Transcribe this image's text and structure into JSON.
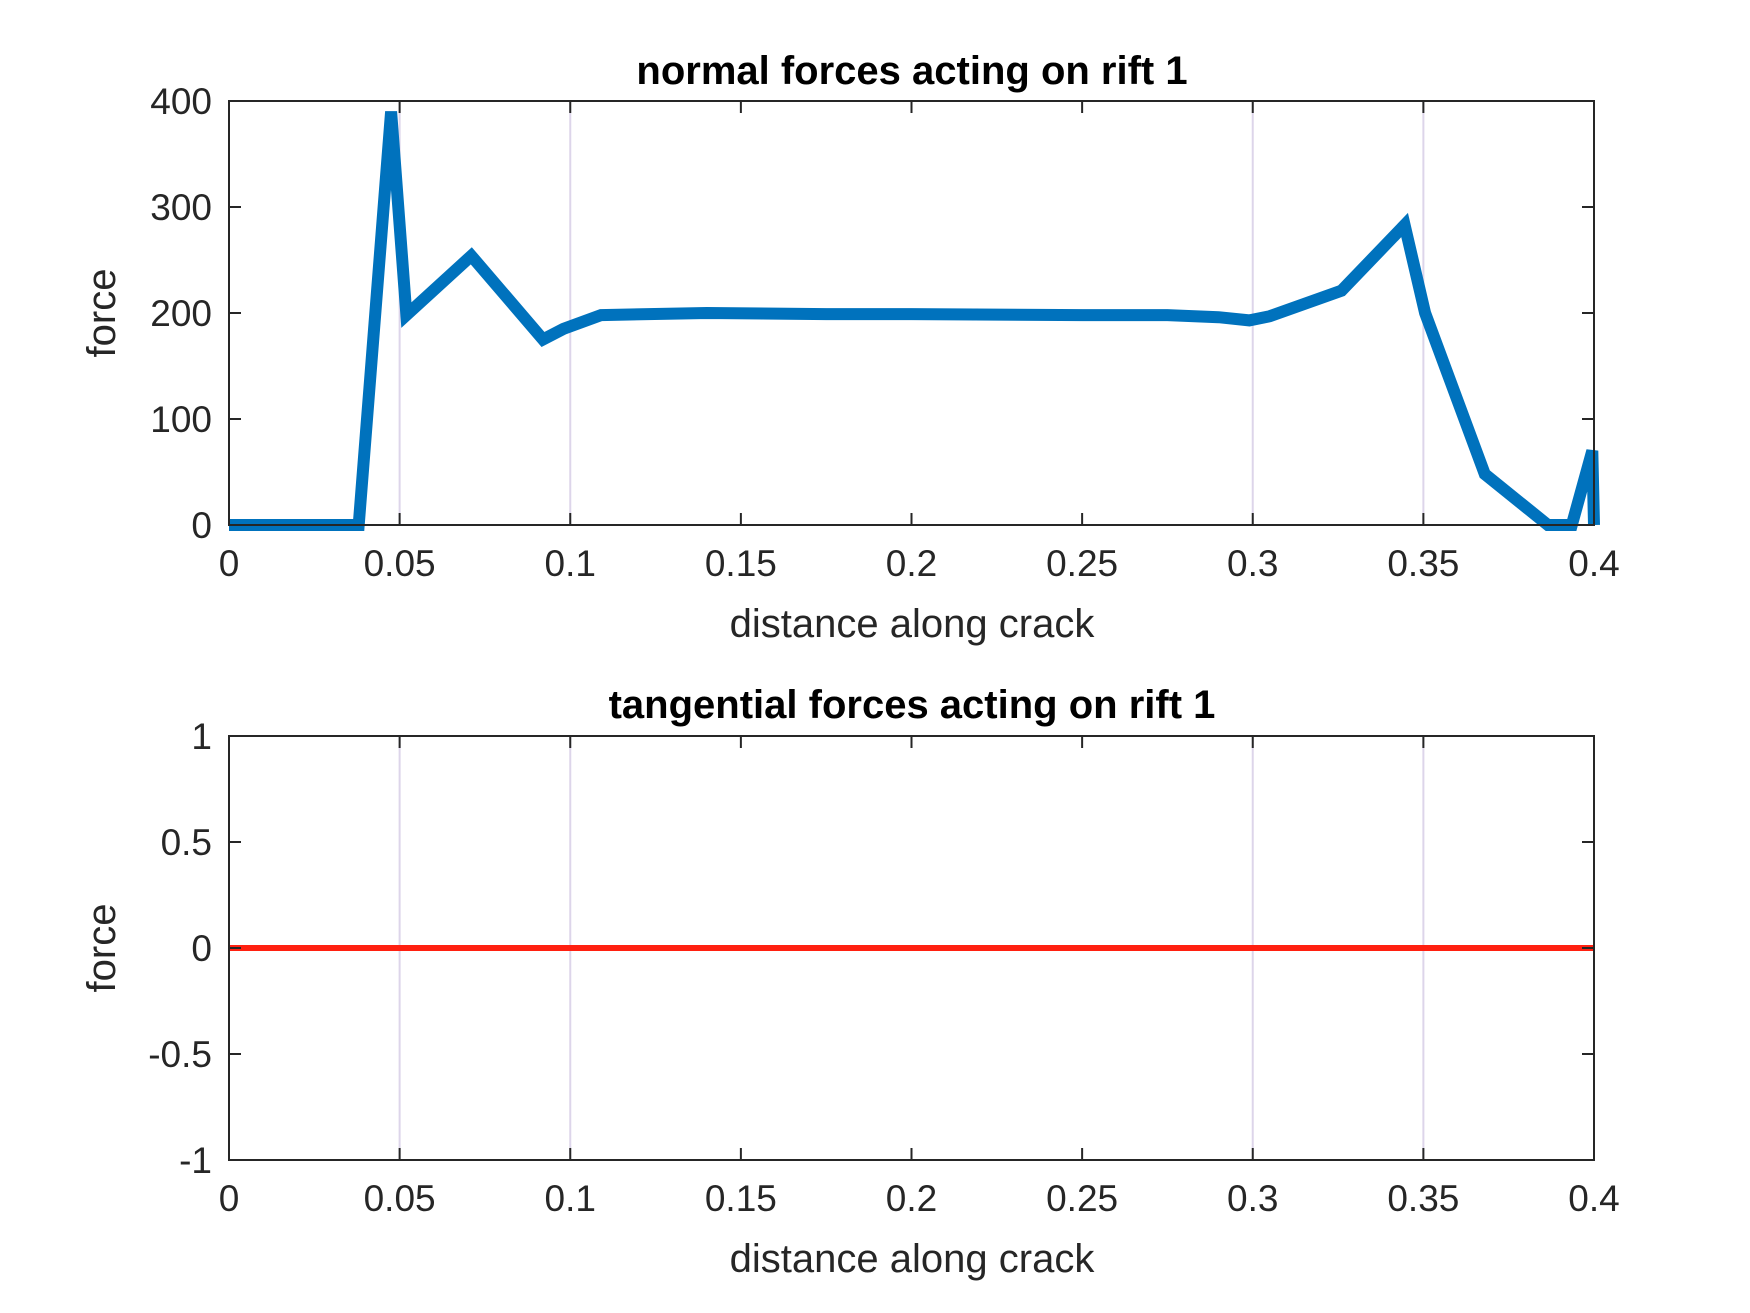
{
  "chart_data": [
    {
      "type": "line",
      "title": "normal forces acting on rift 1",
      "xlabel": "distance along crack",
      "ylabel": "force",
      "xlim": [
        0,
        0.4
      ],
      "ylim": [
        0,
        400
      ],
      "x_ticks": [
        "0",
        "0.05",
        "0.1",
        "0.15",
        "0.2",
        "0.25",
        "0.3",
        "0.35",
        "0.4"
      ],
      "y_ticks": [
        "0",
        "100",
        "200",
        "300",
        "400"
      ],
      "vertical_markers": [
        0.05,
        0.1,
        0.3,
        0.35
      ],
      "series": [
        {
          "color": "#0072bd",
          "x": [
            0,
            0.038,
            0.0475,
            0.052,
            0.071,
            0.092,
            0.098,
            0.109,
            0.14,
            0.175,
            0.2,
            0.25,
            0.275,
            0.29,
            0.299,
            0.305,
            0.326,
            0.3445,
            0.3505,
            0.368,
            0.3865,
            0.3935,
            0.3995,
            0.4
          ],
          "y": [
            0,
            0,
            390,
            198,
            254,
            175,
            185,
            198,
            200,
            199,
            199,
            198,
            198,
            196,
            193,
            197,
            221,
            283,
            200,
            48,
            0,
            0,
            70,
            0
          ]
        }
      ]
    },
    {
      "type": "line",
      "title": "tangential forces acting on rift 1",
      "xlabel": "distance along crack",
      "ylabel": "force",
      "xlim": [
        0,
        0.4
      ],
      "ylim": [
        -1,
        1
      ],
      "x_ticks": [
        "0",
        "0.05",
        "0.1",
        "0.15",
        "0.2",
        "0.25",
        "0.3",
        "0.35",
        "0.4"
      ],
      "y_ticks": [
        "-1",
        "-0.5",
        "0",
        "0.5",
        "1"
      ],
      "vertical_markers": [
        0.05,
        0.1,
        0.3,
        0.35
      ],
      "series": [
        {
          "color": "#ff2010",
          "x": [
            0,
            0.4
          ],
          "y": [
            0,
            0
          ]
        }
      ]
    }
  ]
}
